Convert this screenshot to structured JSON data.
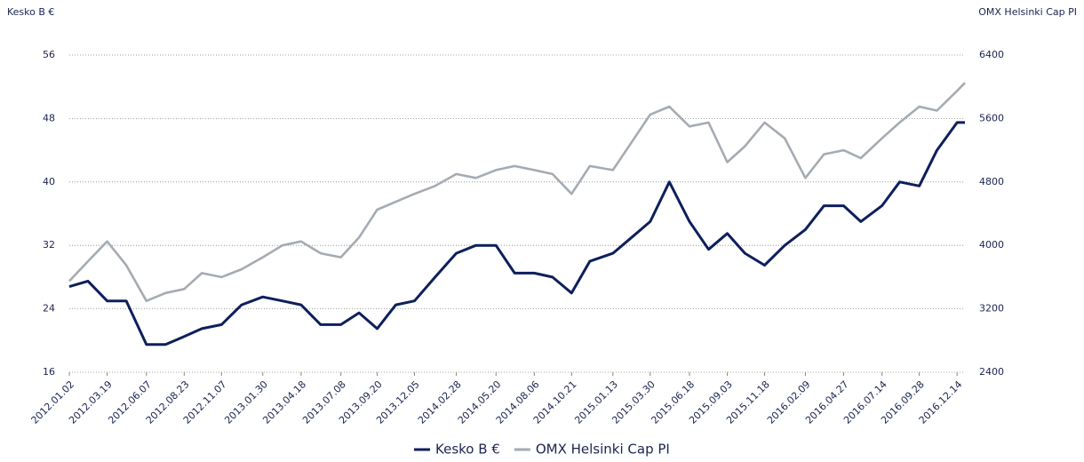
{
  "chart_data": {
    "type": "line",
    "y_label": "Kesko B €",
    "y2_label": "OMX Helsinki Cap PI",
    "x": [
      "2012.01.02",
      "2012.02.09",
      "2012.03.19",
      "2012.04.27",
      "2012.06.07",
      "2012.07.16",
      "2012.08.23",
      "2012.09.28",
      "2012.11.07",
      "2012.12.18",
      "2013.01.30",
      "2013.03.11",
      "2013.04.18",
      "2013.05.28",
      "2013.07.08",
      "2013.08.14",
      "2013.09.20",
      "2013.10.28",
      "2013.12.05",
      "2014.01.16",
      "2014.02.28",
      "2014.04.09",
      "2014.05.20",
      "2014.06.27",
      "2014.08.06",
      "2014.09.12",
      "2014.10.21",
      "2014.11.27",
      "2015.01.13",
      "2015.02.20",
      "2015.03.30",
      "2015.05.08",
      "2015.06.18",
      "2015.07.27",
      "2015.09.03",
      "2015.10.09",
      "2015.11.18",
      "2015.12.29",
      "2016.02.09",
      "2016.03.18",
      "2016.04.27",
      "2016.06.01",
      "2016.07.14",
      "2016.08.19",
      "2016.09.28",
      "2016.11.03",
      "2016.12.14",
      "2016.12.30"
    ],
    "xticks": [
      "2012.01.02",
      "2012.03.19",
      "2012.06.07",
      "2012.08.23",
      "2012.11.07",
      "2013.01.30",
      "2013.04.18",
      "2013.07.08",
      "2013.09.20",
      "2013.12.05",
      "2014.02.28",
      "2014.05.20",
      "2014.08.06",
      "2014.10.21",
      "2015.01.13",
      "2015.03.30",
      "2015.06.18",
      "2015.09.03",
      "2015.11.18",
      "2016.02.09",
      "2016.04.27",
      "2016.07.14",
      "2016.09.28",
      "2016.12.14"
    ],
    "series": [
      {
        "name": "Kesko B €",
        "color": "#0d1f5c",
        "axis": "y",
        "values": [
          26.8,
          27.5,
          25,
          25,
          19.5,
          19.5,
          20.5,
          21.5,
          22,
          24.5,
          25.5,
          25,
          24.5,
          22,
          22,
          23.5,
          21.5,
          24.5,
          25,
          28,
          31,
          32,
          32,
          28.5,
          28.5,
          28,
          26,
          30,
          31,
          33,
          35,
          40,
          35,
          31.5,
          33.5,
          31,
          29.5,
          32,
          34,
          37,
          37,
          35,
          37,
          40,
          39.5,
          44,
          47.5,
          47.5
        ]
      },
      {
        "name": "OMX Helsinki Cap PI",
        "color": "#a5abb3",
        "axis": "y2",
        "values": [
          3550,
          3800,
          4050,
          3750,
          3300,
          3400,
          3450,
          3650,
          3600,
          3700,
          3850,
          4000,
          4050,
          3900,
          3850,
          4100,
          4450,
          4550,
          4650,
          4750,
          4900,
          4850,
          4950,
          5000,
          4950,
          4900,
          4650,
          5000,
          4950,
          5300,
          5650,
          5750,
          5500,
          5550,
          5050,
          5250,
          5550,
          5350,
          4850,
          5150,
          5200,
          5100,
          5350,
          5550,
          5750,
          5700,
          5950,
          6050
        ]
      }
    ],
    "ylim": [
      16,
      56
    ],
    "yticks": [
      16,
      24,
      32,
      40,
      48,
      56
    ],
    "y2lim": [
      2400,
      6400
    ],
    "y2ticks": [
      2400,
      3200,
      4000,
      4800,
      5600,
      6400
    ],
    "grid": true,
    "legend": "bottom"
  }
}
